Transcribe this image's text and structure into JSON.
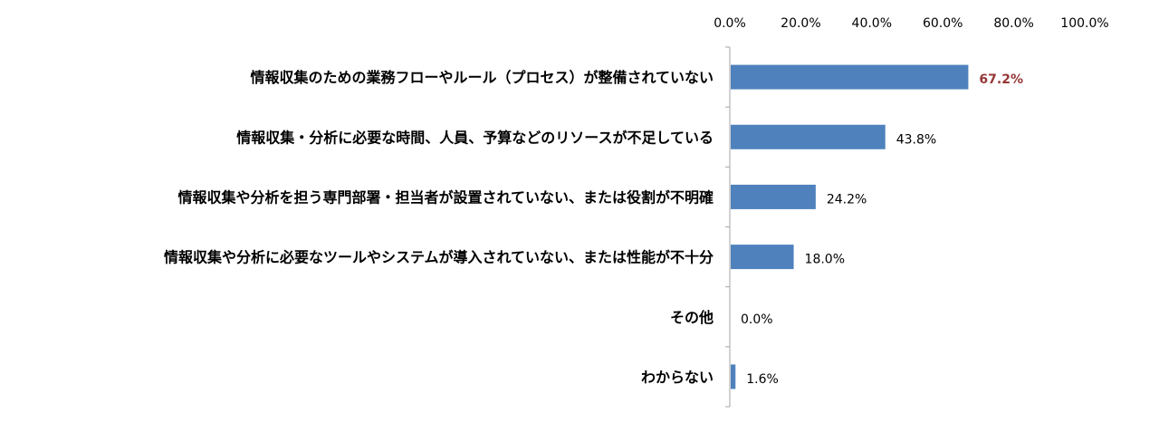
{
  "chart_data": {
    "type": "bar",
    "orientation": "horizontal",
    "categories": [
      "情報収集のための業務フローやルール（プロセス）が整備されていない",
      "情報収集・分析に必要な時間、人員、予算などのリソースが不足している",
      "情報収集や分析を担う専門部署・担当者が設置されていない、または役割が不明確",
      "情報収集や分析に必要なツールやシステムが導入されていない、または性能が不十分",
      "その他",
      "わからない"
    ],
    "values": [
      67.2,
      43.8,
      24.2,
      18.0,
      0.0,
      1.6
    ],
    "data_labels": [
      "67.2%",
      "43.8%",
      "24.2%",
      "18.0%",
      "0.0%",
      "1.6%"
    ],
    "highlight_index": 0,
    "xlim": [
      0,
      100
    ],
    "x_ticks": [
      0,
      20,
      40,
      60,
      80,
      100
    ],
    "x_tick_labels": [
      "0.0%",
      "20.0%",
      "40.0%",
      "60.0%",
      "80.0%",
      "100.0%"
    ],
    "x_axis_position": "top",
    "grid": false,
    "legend": "none",
    "bar_color": "#4f81bd",
    "highlight_label_color": "#953735",
    "axis_color": "#a6a6a6",
    "title": "",
    "xlabel": "",
    "ylabel": ""
  }
}
